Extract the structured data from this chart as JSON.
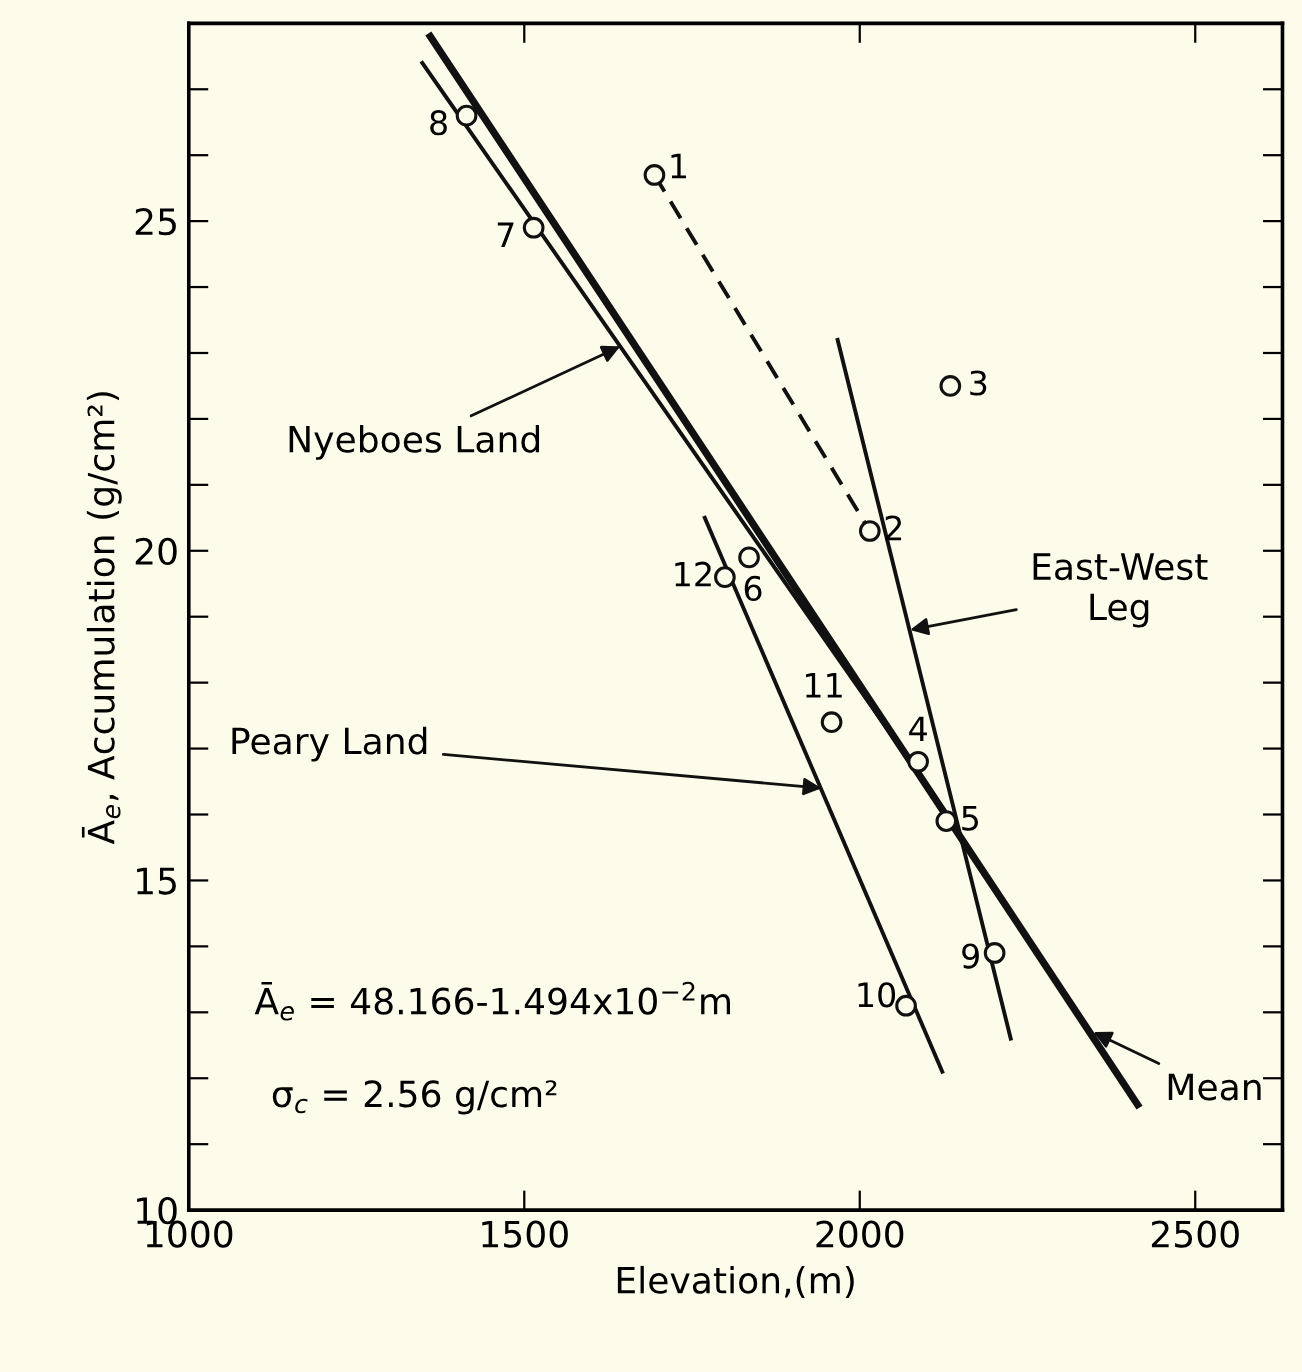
{
  "chart_data": {
    "type": "scatter",
    "xlabel": "Elevation,(m)",
    "ylabel": "Ā$_{e}$, Accumulation (g/cm²)",
    "xlim": [
      1000,
      2630
    ],
    "ylim": [
      10,
      28
    ],
    "xticks": [
      1000,
      1500,
      2000,
      2500
    ],
    "yticks": [
      10,
      {
        "value": 11,
        "label": null
      },
      {
        "value": 12,
        "label": null
      },
      {
        "value": 13,
        "label": null
      },
      {
        "value": 14,
        "label": null
      },
      15,
      {
        "value": 16,
        "label": null
      },
      {
        "value": 17,
        "label": null
      },
      {
        "value": 18,
        "label": null
      },
      {
        "value": 19,
        "label": null
      },
      20,
      {
        "value": 21,
        "label": null
      },
      {
        "value": 22,
        "label": null
      },
      {
        "value": 23,
        "label": null
      },
      {
        "value": 24,
        "label": null
      },
      25,
      {
        "value": 26,
        "label": null
      },
      {
        "value": 27,
        "label": null
      }
    ],
    "grid": false,
    "series": [
      {
        "type": "line",
        "color": "#111111",
        "line_style": "solid",
        "marker": "none",
        "x": [
          1360,
          2414
        ],
        "values": [
          27.8,
          11.6
        ]
      },
      {
        "type": "line",
        "color": "#111111",
        "line_style": "solid",
        "marker": "none",
        "x": [
          1348,
          2130
        ],
        "values": [
          27.4,
          16.0
        ]
      },
      {
        "type": "line",
        "color": "#111111",
        "line_style": "solid",
        "marker": "none",
        "x": [
          1967,
          2225
        ],
        "values": [
          23.2,
          12.6
        ]
      },
      {
        "type": "line",
        "color": "#111111",
        "line_style": "solid",
        "marker": "none",
        "x": [
          1769,
          2123
        ],
        "values": [
          20.5,
          12.1
        ]
      },
      {
        "type": "line",
        "color": "#111111",
        "line_style": "dashed",
        "marker": "none",
        "x": [
          1694,
          2015
        ],
        "values": [
          25.7,
          20.3
        ]
      },
      {
        "color": "#111111",
        "marker": "circle",
        "x": [
          1694,
          2015,
          2135,
          2087,
          2129,
          1835,
          1514,
          1414,
          2201,
          2069,
          1958,
          1799
        ],
        "values": [
          25.7,
          20.3,
          22.5,
          16.8,
          15.9,
          19.9,
          24.9,
          26.6,
          13.9,
          13.1,
          17.4,
          19.6
        ]
      }
    ],
    "annotations": [
      {
        "text": "1",
        "x": 1694,
        "y": 25.7
      },
      {
        "text": "2",
        "x": 2015,
        "y": 20.3
      },
      {
        "text": "3",
        "x": 2135,
        "y": 22.5
      },
      {
        "text": "4",
        "x": 2087,
        "y": 16.8
      },
      {
        "text": "5",
        "x": 2129,
        "y": 15.9
      },
      {
        "text": "6",
        "x": 1835,
        "y": 19.9
      },
      {
        "text": "7",
        "x": 1514,
        "y": 24.9
      },
      {
        "text": "8",
        "x": 1414,
        "y": 26.6
      },
      {
        "text": "9",
        "x": 2201,
        "y": 13.9
      },
      {
        "text": "10",
        "x": 2069,
        "y": 13.1
      },
      {
        "text": "11",
        "x": 1958,
        "y": 17.4
      },
      {
        "text": "12",
        "x": 1799,
        "y": 19.6
      },
      {
        "text": "Nyeboes Land",
        "x": 1643,
        "y": 23.1
      },
      {
        "text": "East-West\nLeg",
        "x": 2075,
        "y": 18.8
      },
      {
        "text": "Peary Land",
        "x": 1943,
        "y": 16.4
      },
      {
        "text": "Mean",
        "x": 2348,
        "y": 12.7
      },
      "Ā$_{e}$ = 48.166-1.494x10$^{−2}$m",
      "σ$_{c}$ = 2.56 g/cm²"
    ]
  }
}
